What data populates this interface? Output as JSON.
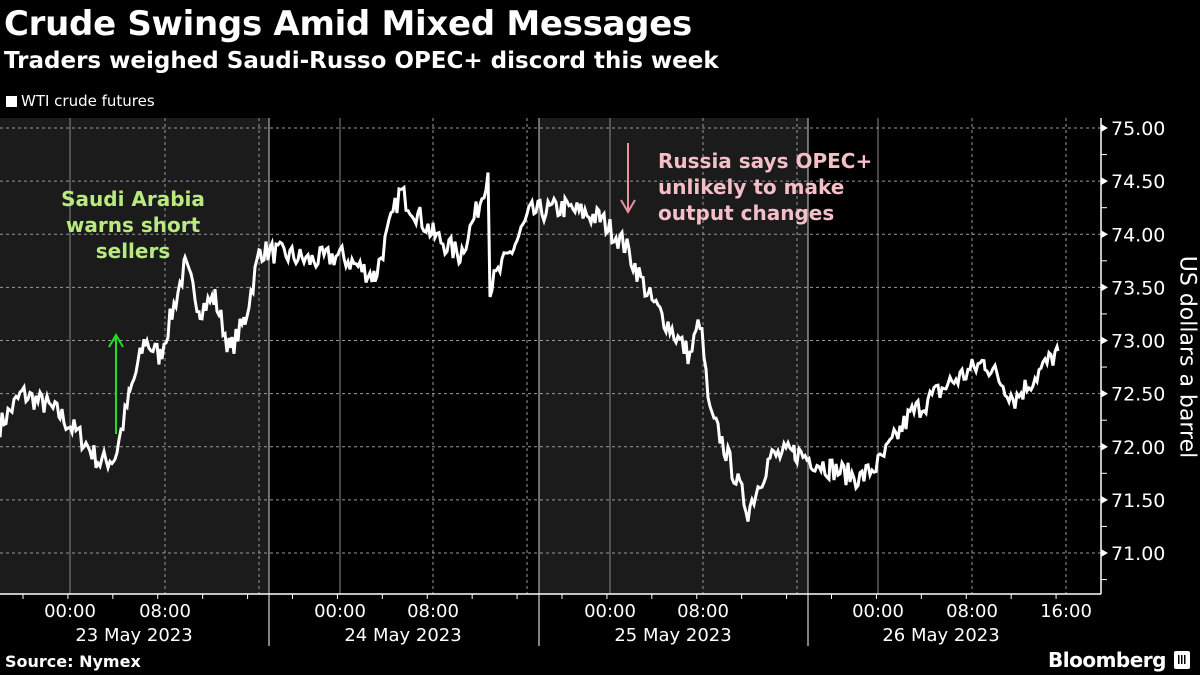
{
  "header": {
    "title": "Crude Swings Amid Mixed Messages",
    "subtitle": "Traders weighed Saudi-Russo OPEC+ discord this week"
  },
  "legend": {
    "label": "WTI crude futures",
    "color": "#ffffff"
  },
  "footer": {
    "source": "Source: Nymex",
    "brand": "Bloomberg"
  },
  "colors": {
    "background": "#000000",
    "shaded_band": "#1b1b1b",
    "line": "#ffffff",
    "annotation_saudi": "#b9ea82",
    "arrow_saudi": "#22dd22",
    "annotation_russia": "#f6bfc8",
    "arrow_russia": "#e9929f"
  },
  "annotations": [
    {
      "text_lines": [
        "Saudi Arabia",
        "warns short",
        "sellers"
      ],
      "color": "#b9ea82",
      "arrow": "up",
      "at": "23 May 2023 ~04:00"
    },
    {
      "text_lines": [
        "Russia says OPEC+",
        "unlikely to make",
        "output changes"
      ],
      "color": "#f6bfc8",
      "arrow": "down",
      "at": "25 May 2023 ~03:00"
    }
  ],
  "chart_data": {
    "type": "line",
    "title": "Crude Swings Amid Mixed Messages",
    "subtitle": "Traders weighed Saudi-Russo OPEC+ discord this week",
    "xlabel": "",
    "ylabel": "US dollars a barrel",
    "ylim": [
      70.75,
      75.1
    ],
    "yticks": [
      "75.00",
      "74.50",
      "74.00",
      "73.50",
      "73.00",
      "72.50",
      "72.00",
      "71.50",
      "71.00"
    ],
    "grid": true,
    "legend_position": "top-left",
    "series_name": "WTI crude futures",
    "x_tick_labels": [
      {
        "time": "00:00",
        "day": "23 May 2023"
      },
      {
        "time": "08:00",
        "day": "23 May 2023"
      },
      {
        "time": "00:00",
        "day": "24 May 2023"
      },
      {
        "time": "08:00",
        "day": "24 May 2023"
      },
      {
        "time": "00:00",
        "day": "25 May 2023"
      },
      {
        "time": "08:00",
        "day": "25 May 2023"
      },
      {
        "time": "00:00",
        "day": "26 May 2023"
      },
      {
        "time": "08:00",
        "day": "26 May 2023"
      },
      {
        "time": "16:00",
        "day": "26 May 2023"
      }
    ],
    "day_labels": [
      "23 May 2023",
      "24 May 2023",
      "25 May 2023",
      "26 May 2023"
    ],
    "shaded_periods": [
      "23 May 2023",
      "25 May 2023"
    ],
    "x": [
      "22 May 21:00",
      "22 May 23:00",
      "23 May 01:00",
      "23 May 02:30",
      "23 May 03:00",
      "23 May 04:00",
      "23 May 05:00",
      "23 May 06:00",
      "23 May 07:00",
      "23 May 08:00",
      "23 May 09:00",
      "23 May 10:00",
      "23 May 11:00",
      "23 May 12:00",
      "23 May 13:00",
      "23 May 14:00",
      "23 May 15:00",
      "23 May 16:00",
      "24 May 00:00",
      "24 May 03:00",
      "24 May 06:00",
      "24 May 08:00",
      "24 May 10:00",
      "24 May 12:00",
      "24 May 13:00",
      "24 May 14:00",
      "24 May 16:00",
      "24 May 18:00",
      "25 May 00:00",
      "25 May 02:00",
      "25 May 04:00",
      "25 May 06:00",
      "25 May 08:00",
      "25 May 09:00",
      "25 May 10:00",
      "25 May 11:00",
      "25 May 12:00",
      "25 May 13:00",
      "25 May 15:00",
      "25 May 18:00",
      "26 May 00:00",
      "26 May 03:00",
      "26 May 06:00",
      "26 May 08:00",
      "26 May 10:00",
      "26 May 12:00",
      "26 May 14:00"
    ],
    "values": [
      72.2,
      72.5,
      72.4,
      72.3,
      72.1,
      71.85,
      71.9,
      72.5,
      73.0,
      72.85,
      73.7,
      73.3,
      73.4,
      72.9,
      73.2,
      73.85,
      73.8,
      73.75,
      73.8,
      73.6,
      74.4,
      74.0,
      73.8,
      74.3,
      74.6,
      73.5,
      73.9,
      74.2,
      74.25,
      74.15,
      73.9,
      73.4,
      72.85,
      73.2,
      72.3,
      72.1,
      71.4,
      71.9,
      71.95,
      71.8,
      71.7,
      71.85,
      72.3,
      72.6,
      72.8,
      72.45,
      72.9
    ]
  }
}
